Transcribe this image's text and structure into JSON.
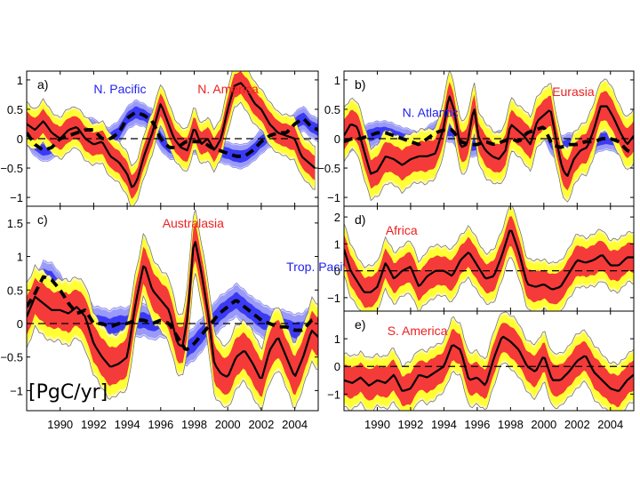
{
  "chart_data": [
    {
      "type": "line",
      "panel": "a)",
      "ylim": [
        -1.15,
        1.15
      ],
      "yticks": [
        -1,
        -0.5,
        0,
        0.5,
        1
      ],
      "ytick_labels": [
        "−1",
        "−0.5",
        "0",
        "0.5",
        "1"
      ],
      "xlim": [
        1988,
        2005.4
      ],
      "xticks": [
        1990,
        1992,
        1994,
        1996,
        1998,
        2000,
        2002,
        2004
      ],
      "show_xtick_labels": false,
      "series": [
        {
          "name": "N. America",
          "kind": "land",
          "label_color": "#ee2020",
          "label_anchor": [
            1998.2,
            0.85
          ],
          "x": [
            1988,
            1988.5,
            1989,
            1989.5,
            1990,
            1990.5,
            1991,
            1991.5,
            1992,
            1992.5,
            1993,
            1993.5,
            1994,
            1994.3,
            1994.6,
            1995,
            1995.5,
            1996,
            1996.4,
            1996.8,
            1997.2,
            1997.6,
            1998,
            1998.4,
            1998.8,
            1999.2,
            1999.6,
            2000,
            2000.4,
            2000.8,
            2001.2,
            2001.6,
            2002,
            2002.5,
            2003,
            2003.5,
            2004,
            2004.4,
            2004.8,
            2005.2
          ],
          "values": [
            0.25,
            0.15,
            0.3,
            0.1,
            0.0,
            0.15,
            0.2,
            0.0,
            -0.1,
            -0.05,
            -0.3,
            -0.4,
            -0.6,
            -0.85,
            -0.7,
            -0.3,
            0.1,
            0.6,
            0.3,
            0.0,
            -0.15,
            -0.2,
            0.2,
            -0.1,
            0.0,
            -0.2,
            0.0,
            0.5,
            0.9,
            0.95,
            0.8,
            0.6,
            0.5,
            0.25,
            0.1,
            0.05,
            0.0,
            -0.3,
            -0.4,
            -0.5
          ],
          "band_inner": 0.2,
          "band_outer": 0.32
        },
        {
          "name": "N. Pacific",
          "kind": "ocean",
          "label_color": "#2222ee",
          "label_anchor": [
            1992.0,
            0.85
          ],
          "x": [
            1988,
            1988.5,
            1989,
            1989.5,
            1990,
            1990.5,
            1991,
            1991.5,
            1992,
            1992.5,
            1993,
            1993.5,
            1994,
            1994.5,
            1995,
            1995.5,
            1996,
            1996.5,
            1997,
            1997.5,
            1998,
            1998.5,
            1999,
            1999.5,
            2000,
            2000.5,
            2001,
            2001.5,
            2002,
            2002.5,
            2003,
            2003.5,
            2004,
            2004.5,
            2005,
            2005.4
          ],
          "values": [
            0.1,
            -0.1,
            -0.2,
            -0.15,
            0.0,
            0.05,
            0.1,
            0.15,
            0.15,
            0.0,
            0.0,
            0.1,
            0.35,
            0.45,
            0.4,
            0.3,
            0.0,
            -0.15,
            -0.15,
            -0.05,
            -0.05,
            -0.05,
            -0.15,
            -0.2,
            -0.25,
            -0.3,
            -0.3,
            -0.2,
            -0.05,
            0.05,
            0.1,
            0.1,
            0.25,
            0.35,
            0.2,
            0.15
          ],
          "band_inner": 0.1,
          "band_outer": 0.18
        }
      ],
      "zero_line": "dashed"
    },
    {
      "type": "line",
      "panel": "b)",
      "ylim": [
        -1.15,
        1.15
      ],
      "yticks": [
        -1,
        -0.5,
        0,
        0.5,
        1
      ],
      "ytick_labels": [
        "−1",
        "−0.5",
        "0",
        "0.5",
        "1"
      ],
      "xlim": [
        1988,
        2005.4
      ],
      "xticks": [
        1990,
        1992,
        1994,
        1996,
        1998,
        2000,
        2002,
        2004
      ],
      "show_xtick_labels": false,
      "series": [
        {
          "name": "Eurasia",
          "kind": "land",
          "label_color": "#ee2020",
          "label_anchor": [
            2000.5,
            0.8
          ],
          "x": [
            1988,
            1988.4,
            1988.8,
            1989.2,
            1989.6,
            1990,
            1990.5,
            1991,
            1991.5,
            1992,
            1992.5,
            1993,
            1993.5,
            1994,
            1994.3,
            1994.6,
            1995,
            1995.4,
            1995.8,
            1996.1,
            1996.5,
            1996.9,
            1997.3,
            1997.7,
            1998,
            1998.4,
            1998.8,
            1999.2,
            1999.6,
            2000,
            2000.4,
            2000.8,
            2001.1,
            2001.4,
            2001.8,
            2002.2,
            2002.6,
            2003,
            2003.4,
            2003.8,
            2004.2,
            2004.6,
            2005,
            2005.4
          ],
          "values": [
            0.05,
            0.25,
            0.2,
            -0.2,
            -0.6,
            -0.55,
            -0.3,
            -0.35,
            -0.45,
            -0.35,
            -0.3,
            -0.3,
            -0.25,
            0.2,
            0.75,
            0.5,
            -0.15,
            -0.1,
            0.55,
            0.0,
            -0.2,
            -0.3,
            -0.35,
            -0.2,
            0.25,
            0.15,
            0.05,
            -0.1,
            0.3,
            0.4,
            0.5,
            -0.1,
            -0.5,
            -0.65,
            -0.35,
            -0.2,
            -0.15,
            0.15,
            0.55,
            0.55,
            0.35,
            0.1,
            -0.1,
            0.05
          ],
          "band_inner": 0.25,
          "band_outer": 0.4
        },
        {
          "name": "N. Atlantic",
          "kind": "ocean",
          "label_color": "#2222ee",
          "label_anchor": [
            1991.5,
            0.45
          ],
          "x": [
            1988,
            1988.5,
            1989,
            1989.5,
            1990,
            1990.5,
            1991,
            1991.5,
            1992,
            1992.5,
            1993,
            1993.5,
            1994,
            1994.5,
            1995,
            1995.5,
            1996,
            1996.5,
            1997,
            1997.5,
            1998,
            1998.5,
            1999,
            1999.5,
            2000,
            2000.5,
            2001,
            2001.5,
            2002,
            2002.5,
            2003,
            2003.5,
            2004,
            2004.5,
            2005,
            2005.4
          ],
          "values": [
            -0.05,
            0.0,
            0.0,
            0.05,
            0.1,
            0.1,
            0.05,
            0.0,
            -0.05,
            -0.1,
            0.0,
            0.1,
            0.15,
            0.15,
            -0.05,
            -0.1,
            -0.1,
            -0.05,
            -0.1,
            -0.05,
            0.0,
            -0.05,
            0.1,
            0.15,
            0.2,
            -0.1,
            -0.15,
            -0.1,
            -0.1,
            -0.05,
            -0.05,
            0.0,
            0.0,
            -0.05,
            -0.2,
            -0.25
          ],
          "band_inner": 0.1,
          "band_outer": 0.18
        }
      ],
      "zero_line": "dashed"
    },
    {
      "type": "line",
      "panel": "c)",
      "ylim": [
        -1.3,
        1.75
      ],
      "yticks": [
        -1,
        -0.5,
        0,
        0.5,
        1,
        1.5
      ],
      "ytick_labels": [
        "−1",
        "−0.5",
        "0",
        "0.5",
        "1",
        "1.5"
      ],
      "xlim": [
        1988,
        2005.4
      ],
      "xticks": [
        1990,
        1992,
        1994,
        1996,
        1998,
        2000,
        2002,
        2004
      ],
      "show_xtick_labels": true,
      "xtick_labels": [
        "1990",
        "1992",
        "1994",
        "1996",
        "1998",
        "2000",
        "2002",
        "2004"
      ],
      "series": [
        {
          "name": "Australasia",
          "kind": "land",
          "label_color": "#ee2020",
          "label_anchor": [
            1996.1,
            1.5
          ],
          "x": [
            1988,
            1988.5,
            1989,
            1989.5,
            1990,
            1990.5,
            1991,
            1991.5,
            1992,
            1992.5,
            1993,
            1993.5,
            1994,
            1994.5,
            1995,
            1995.5,
            1996,
            1996.5,
            1997,
            1997.3,
            1997.6,
            1998,
            1998.4,
            1998.8,
            1999.2,
            1999.6,
            2000,
            2000.5,
            2001,
            2001.5,
            2002,
            2002.5,
            2003,
            2003.5,
            2004,
            2004.5,
            2005,
            2005.4
          ],
          "values": [
            0.1,
            0.4,
            0.3,
            0.2,
            0.2,
            0.15,
            0.25,
            0.1,
            -0.3,
            -0.5,
            -0.65,
            -0.6,
            -0.5,
            0.3,
            0.9,
            0.5,
            0.35,
            0.2,
            -0.3,
            -0.35,
            0.1,
            1.3,
            0.8,
            0.2,
            -0.6,
            -0.75,
            -0.8,
            -0.5,
            -0.4,
            -0.6,
            -0.85,
            -0.4,
            -0.2,
            -0.5,
            -0.8,
            -0.5,
            -0.1,
            -0.2
          ],
          "band_inner": 0.28,
          "band_outer": 0.42
        },
        {
          "name": "Trop. Pacific",
          "kind": "ocean",
          "label_color": "#2222ee",
          "label_anchor": [
            2003.5,
            0.85
          ],
          "x": [
            1988,
            1988.5,
            1989,
            1989.5,
            1990,
            1990.5,
            1991,
            1991.5,
            1992,
            1992.5,
            1993,
            1993.5,
            1994,
            1994.5,
            1995,
            1995.5,
            1996,
            1996.5,
            1997,
            1997.5,
            1998,
            1998.5,
            1999,
            1999.5,
            2000,
            2000.5,
            2001,
            2001.5,
            2002,
            2002.5,
            2003,
            2003.5,
            2004,
            2004.5,
            2005,
            2005.4
          ],
          "values": [
            0.25,
            0.45,
            0.7,
            0.65,
            0.5,
            0.3,
            0.15,
            0.2,
            0.0,
            0.0,
            -0.05,
            0.0,
            0.0,
            0.05,
            0.05,
            0.0,
            0.05,
            0.0,
            -0.2,
            -0.4,
            -0.3,
            -0.15,
            0.0,
            0.15,
            0.25,
            0.35,
            0.25,
            0.15,
            0.05,
            0.0,
            -0.05,
            -0.05,
            -0.1,
            -0.1,
            0.05,
            0.05
          ],
          "band_inner": 0.12,
          "band_outer": 0.22
        }
      ],
      "zero_line": "dashed",
      "unit_label": "[PgC/yr]"
    },
    {
      "type": "line",
      "panel": "d)",
      "ylim": [
        -1.5,
        2.4
      ],
      "yticks": [
        -1,
        0,
        1,
        2
      ],
      "ytick_labels": [
        "−1",
        "0",
        "1",
        "2"
      ],
      "xlim": [
        1988,
        2005.4
      ],
      "xticks": [
        1990,
        1992,
        1994,
        1996,
        1998,
        2000,
        2002,
        2004
      ],
      "show_xtick_labels": false,
      "series": [
        {
          "name": "Africa",
          "kind": "land",
          "label_color": "#ee2020",
          "label_anchor": [
            1990.5,
            1.5
          ],
          "x": [
            1988,
            1988.4,
            1988.8,
            1989.2,
            1989.6,
            1990,
            1990.5,
            1991,
            1991.5,
            1992,
            1992.5,
            1993,
            1993.5,
            1994,
            1994.5,
            1995,
            1995.5,
            1996,
            1996.5,
            1997,
            1997.5,
            1998,
            1998.5,
            1999,
            1999.5,
            2000,
            2000.5,
            2001,
            2001.5,
            2002,
            2002.5,
            2003,
            2003.5,
            2004,
            2004.5,
            2005,
            2005.4
          ],
          "values": [
            0.8,
            0.0,
            -0.4,
            -0.8,
            -0.8,
            -0.6,
            0.3,
            -0.3,
            0.0,
            0.15,
            -0.6,
            -0.2,
            0.0,
            0.0,
            -0.2,
            0.4,
            0.7,
            0.2,
            -0.3,
            -0.2,
            0.6,
            1.6,
            0.7,
            -0.5,
            -0.6,
            -0.5,
            -0.7,
            -0.6,
            -0.1,
            0.4,
            0.3,
            0.4,
            0.6,
            0.2,
            0.2,
            0.5,
            0.5
          ],
          "band_inner": 0.55,
          "band_outer": 0.85
        }
      ],
      "zero_line": "dashed"
    },
    {
      "type": "line",
      "panel": "e)",
      "ylim": [
        -1.6,
        2.0
      ],
      "yticks": [
        -1,
        0,
        1
      ],
      "ytick_labels": [
        "−1",
        "0",
        "1"
      ],
      "xlim": [
        1988,
        2005.4
      ],
      "xticks": [
        1990,
        1992,
        1994,
        1996,
        1998,
        2000,
        2002,
        2004
      ],
      "show_xtick_labels": true,
      "xtick_labels": [
        "1990",
        "1992",
        "1994",
        "1996",
        "1998",
        "2000",
        "2002",
        "2004"
      ],
      "series": [
        {
          "name": "S. America",
          "kind": "land",
          "label_color": "#ee2020",
          "label_anchor": [
            1990.6,
            1.3
          ],
          "x": [
            1988,
            1988.5,
            1989,
            1989.5,
            1990,
            1990.5,
            1991,
            1991.5,
            1992,
            1992.5,
            1993,
            1993.5,
            1994,
            1994.5,
            1995,
            1995.5,
            1996,
            1996.5,
            1997,
            1997.5,
            1998,
            1998.5,
            1999,
            1999.5,
            2000,
            2000.5,
            2001,
            2001.5,
            2002,
            2002.5,
            2003,
            2003.5,
            2004,
            2004.5,
            2005,
            2005.4
          ],
          "values": [
            -0.5,
            -0.6,
            -0.4,
            -0.7,
            -0.5,
            -0.6,
            -0.3,
            -0.9,
            -0.8,
            -0.3,
            -0.4,
            -0.2,
            0.0,
            0.8,
            0.6,
            -0.5,
            -0.4,
            -0.7,
            0.3,
            1.1,
            0.9,
            0.6,
            0.0,
            -0.2,
            0.4,
            -0.5,
            -0.5,
            -0.2,
            0.2,
            0.4,
            -0.2,
            -0.5,
            -0.8,
            -0.9,
            -0.5,
            -0.3
          ],
          "band_inner": 0.55,
          "band_outer": 0.85
        }
      ],
      "zero_line": "dashed"
    }
  ],
  "colors": {
    "land_inner": "#f53a3a",
    "land_outer": "#ffff33",
    "land_edge": "#fff8b0",
    "ocean_inner": "#3a3af5",
    "ocean_outer": "#9a9af8",
    "ocean_edge": "#d2d2fb",
    "line": "#000000"
  }
}
